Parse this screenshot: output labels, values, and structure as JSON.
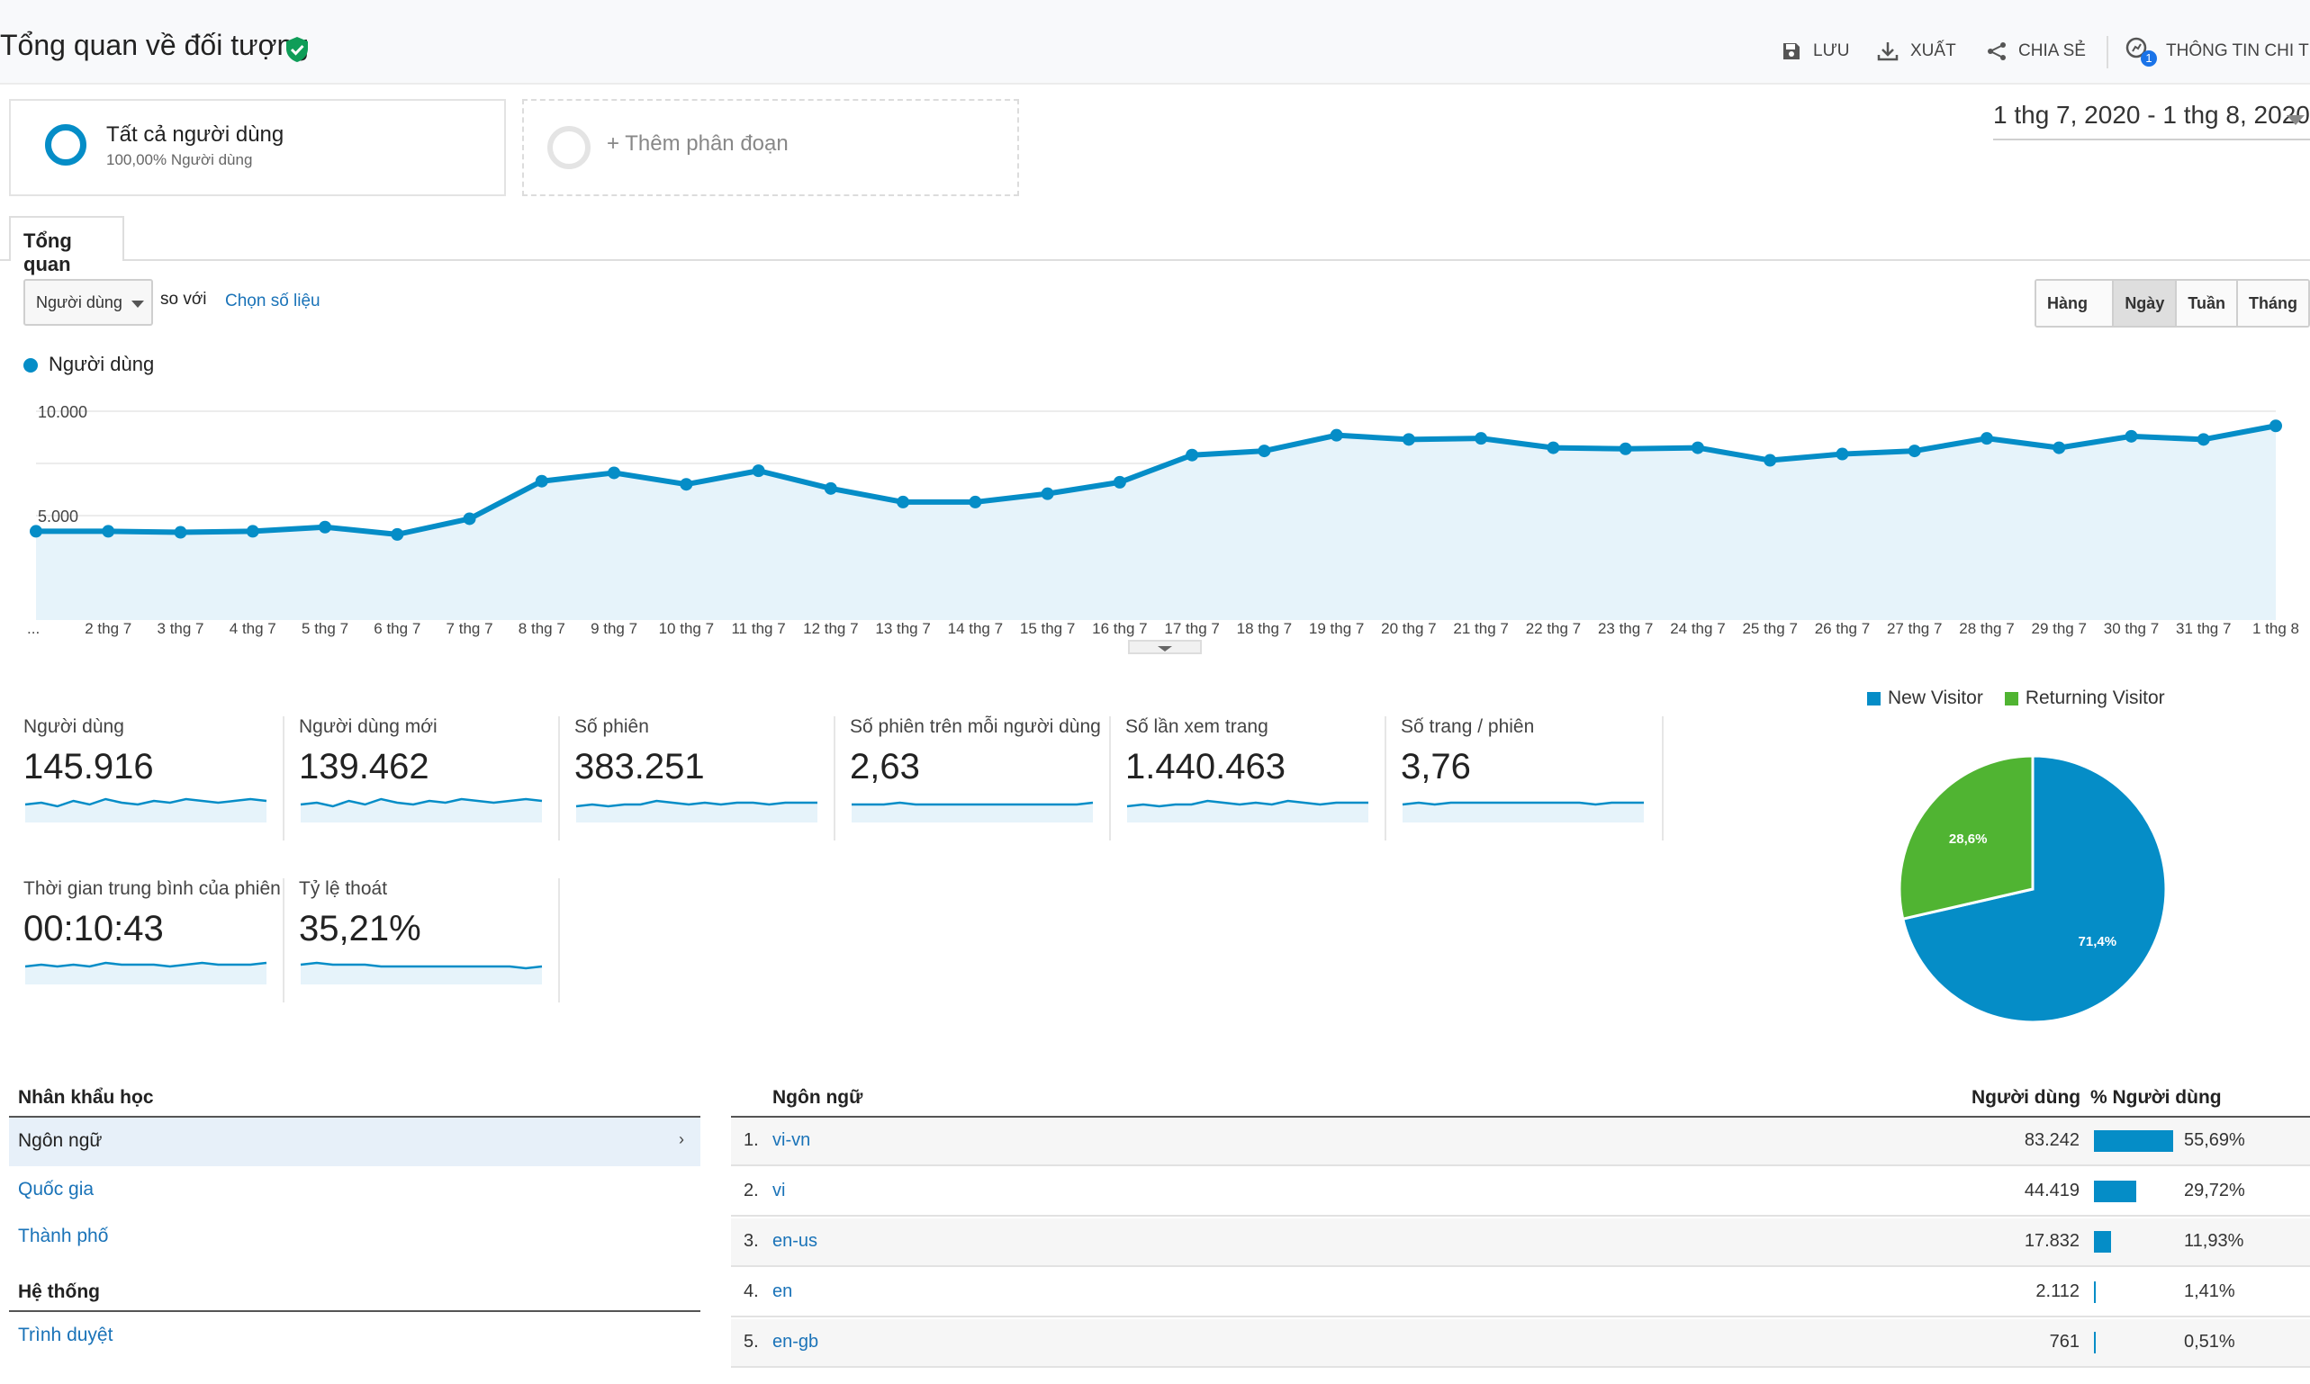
{
  "header": {
    "title": "Tổng quan về đối tượng",
    "actions": {
      "save": "LƯU",
      "export": "XUẤT",
      "share": "CHIA SẺ",
      "insights": "THÔNG TIN CHI TIẾT",
      "insights_badge": "1"
    }
  },
  "segments": {
    "active_name": "Tất cả người dùng",
    "active_sub": "100,00% Người dùng",
    "add_label": "+ Thêm phân đoạn"
  },
  "date_range": "1 thg 7, 2020 - 1 thg 8, 2020",
  "tabs": {
    "overview": "Tổng quan"
  },
  "controls": {
    "metric_select": "Người dùng",
    "compare_label": "so với",
    "choose_metric": "Chọn số liệu",
    "periods": [
      "Hàng giờ",
      "Ngày",
      "Tuần",
      "Tháng"
    ],
    "active_period": "Ngày"
  },
  "chart_data": {
    "type": "area",
    "legend": "Người dùng",
    "color": "#058dc7",
    "y_ticks": [
      "10.000",
      "5.000"
    ],
    "ylim": [
      0,
      10000
    ],
    "x_labels": [
      "...",
      "2 thg 7",
      "3 thg 7",
      "4 thg 7",
      "5 thg 7",
      "6 thg 7",
      "7 thg 7",
      "8 thg 7",
      "9 thg 7",
      "10 thg 7",
      "11 thg 7",
      "12 thg 7",
      "13 thg 7",
      "14 thg 7",
      "15 thg 7",
      "16 thg 7",
      "17 thg 7",
      "18 thg 7",
      "19 thg 7",
      "20 thg 7",
      "21 thg 7",
      "22 thg 7",
      "23 thg 7",
      "24 thg 7",
      "25 thg 7",
      "26 thg 7",
      "27 thg 7",
      "28 thg 7",
      "29 thg 7",
      "30 thg 7",
      "31 thg 7",
      "1 thg 8"
    ],
    "values": [
      4250,
      4250,
      4200,
      4250,
      4450,
      4100,
      4850,
      6650,
      7050,
      6500,
      7150,
      6300,
      5650,
      5650,
      6050,
      6600,
      7900,
      8100,
      8850,
      8650,
      8700,
      8250,
      8200,
      8250,
      7650,
      7950,
      8100,
      8700,
      8250,
      8800,
      8650,
      9300
    ]
  },
  "scorecards": [
    {
      "label": "Người dùng",
      "value": "145.916"
    },
    {
      "label": "Người dùng mới",
      "value": "139.462"
    },
    {
      "label": "Số phiên",
      "value": "383.251"
    },
    {
      "label": "Số phiên trên mỗi người dùng",
      "value": "2,63"
    },
    {
      "label": "Số lần xem trang",
      "value": "1.440.463"
    },
    {
      "label": "Số trang / phiên",
      "value": "3,76"
    },
    {
      "label": "Thời gian trung bình của phiên",
      "value": "00:10:43"
    },
    {
      "label": "Tỷ lệ thoát",
      "value": "35,21%"
    }
  ],
  "pie": {
    "legend": [
      {
        "name": "New Visitor",
        "color": "#058dc7"
      },
      {
        "name": "Returning Visitor",
        "color": "#50b432"
      }
    ],
    "slices": [
      {
        "name": "New Visitor",
        "value": 71.4,
        "label": "71,4%",
        "color": "#058dc7"
      },
      {
        "name": "Returning Visitor",
        "value": 28.6,
        "label": "28,6%",
        "color": "#50b432"
      }
    ]
  },
  "demographics_nav": {
    "header_1": "Nhân khẩu học",
    "active_item": "Ngôn ngữ",
    "links_1": [
      "Quốc gia",
      "Thành phố"
    ],
    "header_2": "Hệ thống",
    "links_2": [
      "Trình duyệt"
    ]
  },
  "table": {
    "headers": {
      "language": "Ngôn ngữ",
      "users": "Người dùng",
      "pct": "% Người dùng"
    },
    "rows": [
      {
        "idx": "1.",
        "lang": "vi-vn",
        "users": "83.242",
        "pct_label": "55,69%",
        "pct": 55.69
      },
      {
        "idx": "2.",
        "lang": "vi",
        "users": "44.419",
        "pct_label": "29,72%",
        "pct": 29.72
      },
      {
        "idx": "3.",
        "lang": "en-us",
        "users": "17.832",
        "pct_label": "11,93%",
        "pct": 11.93
      },
      {
        "idx": "4.",
        "lang": "en",
        "users": "2.112",
        "pct_label": "1,41%",
        "pct": 1.41
      },
      {
        "idx": "5.",
        "lang": "en-gb",
        "users": "761",
        "pct_label": "0,51%",
        "pct": 0.51
      }
    ]
  }
}
